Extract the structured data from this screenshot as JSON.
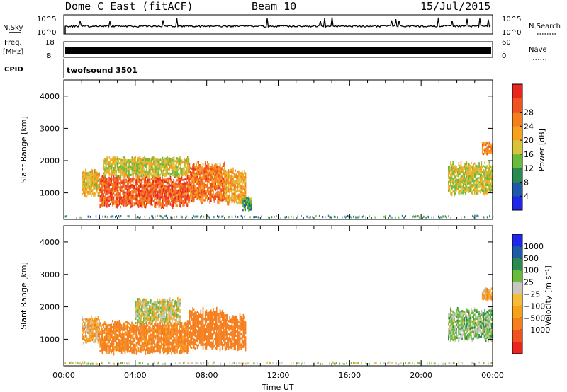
{
  "header": {
    "station": "Dome C East (fitACF)",
    "beam": "Beam 10",
    "date": "15/Jul/2015"
  },
  "strips": {
    "nsky_label": "N.Sky",
    "nsky_top": "10^5",
    "nsky_bottom": "10^0",
    "nsearch_label": "N.Search",
    "nsearch_top": "10^5",
    "nsearch_bottom": "10^0",
    "freq_label": "Freq.",
    "freq_unit": "[MHz]",
    "freq_top": "18",
    "freq_bottom": "8",
    "nave_label": "Nave",
    "nave_top": "60",
    "nave_bottom": "0",
    "cpid_label": "CPID",
    "cpid_value": "twofsound 3501"
  },
  "colors": {
    "power_scale": [
      "#1f27e8",
      "#1f5aa8",
      "#2a8a4f",
      "#6aba3e",
      "#d8c43a",
      "#f6a21c",
      "#f57f1e",
      "#ef5322",
      "#e8261f"
    ],
    "velocity_scale": [
      "#e8261f",
      "#ef5322",
      "#f57f1e",
      "#f6a21c",
      "#f5bb39",
      "#c9c7bd",
      "#6aba3e",
      "#2a8a4f",
      "#1f5aa8",
      "#1f27e8"
    ]
  },
  "chart_data": [
    {
      "type": "heatmap",
      "name": "power",
      "xlabel": "Time UT",
      "ylabel": "Slant Range [km]",
      "xlim": [
        0,
        24
      ],
      "ylim": [
        180,
        4500
      ],
      "yticks": [
        1000,
        2000,
        3000,
        4000
      ],
      "colorbar": {
        "label": "Power [dB]",
        "ticks": [
          "4",
          "8",
          "12",
          "16",
          "20",
          "24",
          "28"
        ],
        "range": [
          0,
          32
        ]
      },
      "regions": [
        {
          "t0": 1.0,
          "t1": 2.0,
          "r0": 900,
          "r1": 1750,
          "level": 18
        },
        {
          "t0": 2.0,
          "t1": 7.0,
          "r0": 550,
          "r1": 1600,
          "level": 26
        },
        {
          "t0": 2.2,
          "t1": 7.0,
          "r0": 1500,
          "r1": 2150,
          "level": 16
        },
        {
          "t0": 7.0,
          "t1": 9.0,
          "r0": 700,
          "r1": 2000,
          "level": 24
        },
        {
          "t0": 9.0,
          "t1": 10.2,
          "r0": 650,
          "r1": 1800,
          "level": 20
        },
        {
          "t0": 10.0,
          "t1": 10.5,
          "r0": 450,
          "r1": 900,
          "level": 10
        },
        {
          "t0": 21.5,
          "t1": 24.0,
          "r0": 950,
          "r1": 2000,
          "level": 16
        },
        {
          "t0": 23.4,
          "t1": 24.0,
          "r0": 2200,
          "r1": 2600,
          "level": 22
        },
        {
          "t0": 0.0,
          "t1": 24.0,
          "r0": 200,
          "r1": 320,
          "level": 8
        }
      ]
    },
    {
      "type": "heatmap",
      "name": "velocity",
      "xlabel": "Time UT",
      "ylabel": "Slant Range [km]",
      "xlim": [
        0,
        24
      ],
      "ylim": [
        180,
        4500
      ],
      "xticks": [
        "00:00",
        "04:00",
        "08:00",
        "12:00",
        "16:00",
        "20:00",
        "00:00"
      ],
      "yticks": [
        1000,
        2000,
        3000,
        4000
      ],
      "colorbar": {
        "label": "Velocity [m s⁻¹]",
        "ticks": [
          "1000",
          "500",
          "100",
          "25",
          "−25",
          "−100",
          "−500",
          "−1000"
        ]
      },
      "regions": [
        {
          "t0": 1.0,
          "t1": 2.0,
          "r0": 900,
          "r1": 1750,
          "level": -60
        },
        {
          "t0": 2.0,
          "t1": 7.0,
          "r0": 550,
          "r1": 1600,
          "level": -150
        },
        {
          "t0": 4.0,
          "t1": 6.5,
          "r0": 1500,
          "r1": 2300,
          "level": 0
        },
        {
          "t0": 7.0,
          "t1": 9.0,
          "r0": 700,
          "r1": 2000,
          "level": -200
        },
        {
          "t0": 9.0,
          "t1": 10.2,
          "r0": 650,
          "r1": 1800,
          "level": -300
        },
        {
          "t0": 21.5,
          "t1": 24.0,
          "r0": 950,
          "r1": 2000,
          "level": 50
        },
        {
          "t0": 23.4,
          "t1": 24.0,
          "r0": 2200,
          "r1": 2600,
          "level": -60
        },
        {
          "t0": 0.0,
          "t1": 24.0,
          "r0": 200,
          "r1": 320,
          "level": 20
        }
      ]
    }
  ]
}
